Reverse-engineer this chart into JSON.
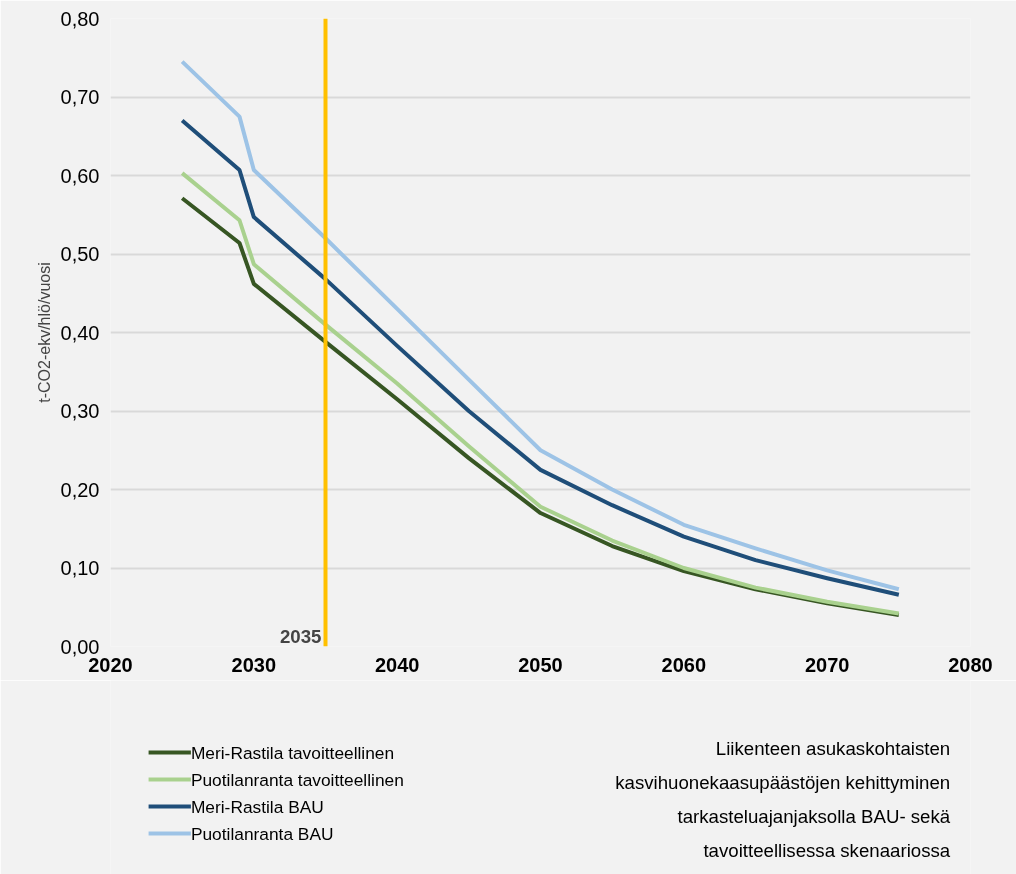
{
  "chart_data": {
    "type": "line",
    "ylabel": "t-CO2-ekv/hlö/vuosi",
    "x": [
      2025,
      2029,
      2030,
      2035,
      2040,
      2045,
      2050,
      2055,
      2060,
      2065,
      2070,
      2075
    ],
    "series": [
      {
        "name": "Meri-Rastila tavoitteellinen",
        "color": "#375623",
        "values": [
          0.571,
          0.514,
          0.462,
          0.388,
          0.315,
          0.24,
          0.17,
          0.128,
          0.096,
          0.073,
          0.055,
          0.04
        ]
      },
      {
        "name": "Puotilanranta tavoitteellinen",
        "color": "#a9d18e",
        "values": [
          0.603,
          0.543,
          0.487,
          0.41,
          0.335,
          0.255,
          0.178,
          0.135,
          0.1,
          0.075,
          0.057,
          0.042
        ]
      },
      {
        "name": "Meri-Rastila BAU",
        "color": "#1f4e79",
        "values": [
          0.67,
          0.607,
          0.547,
          0.468,
          0.383,
          0.3,
          0.225,
          0.18,
          0.14,
          0.11,
          0.087,
          0.066
        ]
      },
      {
        "name": "Puotilanranta BAU",
        "color": "#9dc3e6",
        "values": [
          0.745,
          0.675,
          0.607,
          0.52,
          0.43,
          0.34,
          0.25,
          0.2,
          0.155,
          0.125,
          0.097,
          0.073
        ]
      }
    ],
    "xlim": [
      2020,
      2080
    ],
    "xticks": [
      2020,
      2030,
      2040,
      2050,
      2060,
      2070,
      2080
    ],
    "ylim": [
      0,
      0.8
    ],
    "yticks": [
      {
        "value": 0,
        "label": "0,00"
      },
      {
        "value": 0.1,
        "label": "0,10"
      },
      {
        "value": 0.2,
        "label": "0,20"
      },
      {
        "value": 0.3,
        "label": "0,30"
      },
      {
        "value": 0.4,
        "label": "0,40"
      },
      {
        "value": 0.5,
        "label": "0,50"
      },
      {
        "value": 0.6,
        "label": "0,60"
      },
      {
        "value": 0.7,
        "label": "0,70"
      },
      {
        "value": 0.8,
        "label": "0,80"
      }
    ],
    "ref_lines": [
      {
        "axis": "x",
        "value": 2035,
        "label": "2035",
        "color": "#ffc000"
      }
    ],
    "annotations": [
      "Liikenteen asukaskohtaisten kasvihuonekaasupäästöjen kehittyminen tarkasteluajanjaksolla BAU- sekä tavoitteellisessa skenaariossa"
    ],
    "grid": "y",
    "legend": "bottom left",
    "marker": "none",
    "line_style": "solid"
  }
}
